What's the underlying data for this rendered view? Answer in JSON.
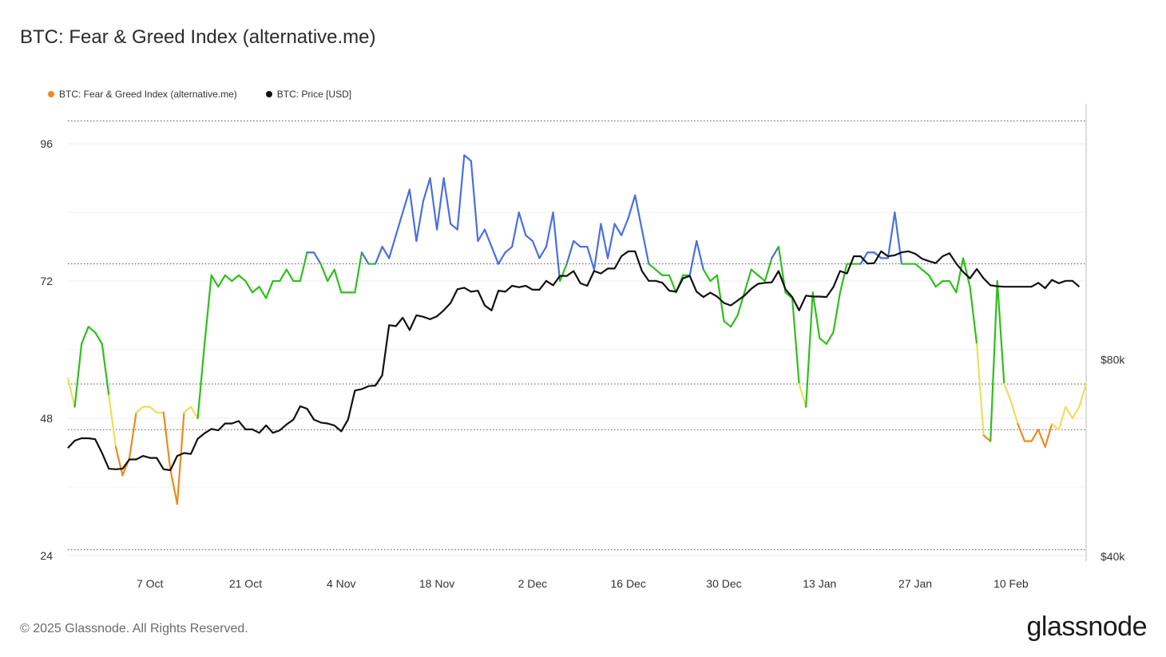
{
  "header": {
    "title": "BTC: Fear & Greed Index (alternative.me)"
  },
  "footer": {
    "copyright": "© 2025 Glassnode. All Rights Reserved.",
    "brand": "glassnode"
  },
  "colors": {
    "extreme_fear": "#f08a1c",
    "fear": "#f2dc5d",
    "greed": "#2ec01a",
    "extreme_greed": "#4a6fe3",
    "price": "#111111"
  },
  "chart_data": {
    "type": "line",
    "title": "BTC: Fear & Greed Index (alternative.me)",
    "legend_position": "top-left",
    "legend": [
      {
        "label": "BTC: Fear & Greed Index (alternative.me)",
        "color": "#f08a1c"
      },
      {
        "label": "BTC: Price [USD]",
        "color": "#111111"
      }
    ],
    "x_labels": [
      "7 Oct",
      "21 Oct",
      "4 Nov",
      "18 Nov",
      "2 Dec",
      "16 Dec",
      "30 Dec",
      "13 Jan",
      "27 Jan",
      "10 Feb"
    ],
    "x_label_day_index": [
      12,
      26,
      40,
      54,
      68,
      82,
      96,
      110,
      124,
      138
    ],
    "y_left": {
      "ticks": [
        24,
        48,
        72,
        96
      ],
      "tick_labels": [
        "24",
        "48",
        "72",
        "96"
      ],
      "range": [
        23,
        103
      ]
    },
    "y_right": {
      "ticks": [
        40000,
        80000
      ],
      "tick_labels": [
        "$40k",
        "$80k"
      ],
      "range": [
        39000,
        132000
      ]
    },
    "thresholds": [
      25,
      46,
      54,
      75,
      100
    ],
    "series": [
      {
        "name": "BTC: Fear & Greed Index (alternative.me)",
        "axis": "left",
        "values": [
          55,
          50,
          61,
          64,
          63,
          61,
          52,
          43,
          38,
          41,
          49,
          50,
          50,
          49,
          49,
          39,
          33,
          49,
          50,
          48,
          61,
          73,
          71,
          73,
          72,
          73,
          72,
          70,
          71,
          69,
          72,
          72,
          74,
          72,
          72,
          77,
          77,
          75,
          72,
          74,
          70,
          70,
          70,
          77,
          75,
          75,
          78,
          76,
          80,
          84,
          88,
          79,
          86,
          90,
          81,
          90,
          82,
          81,
          94,
          93,
          79,
          81,
          78,
          75,
          77,
          78,
          84,
          80,
          79,
          76,
          78,
          84,
          72,
          75,
          79,
          78,
          78,
          74,
          82,
          76,
          82,
          80,
          83,
          87,
          81,
          75,
          74,
          73,
          73,
          70,
          73,
          73,
          79,
          74,
          72,
          73,
          65,
          64,
          66,
          70,
          74,
          73,
          72,
          76,
          78,
          70,
          69,
          54,
          50,
          70,
          62,
          61,
          63,
          70,
          75,
          75,
          75,
          77,
          77,
          76,
          76,
          84,
          75,
          75,
          75,
          74,
          73,
          71,
          72,
          72,
          70,
          76,
          71,
          61,
          45,
          44,
          72,
          54,
          51,
          47,
          44,
          44,
          46,
          43,
          47,
          46,
          50,
          48,
          50,
          54
        ],
        "color_bands": {
          "extreme_fear": "<25",
          "fear": "25-46 orange / 46-54 yellow",
          "greed": "54-75",
          "extreme_greed": ">75"
        }
      },
      {
        "name": "BTC: Price [USD]",
        "axis": "right",
        "values": [
          62000,
          63500,
          64000,
          64000,
          63800,
          61000,
          57800,
          57700,
          57800,
          59700,
          59700,
          60400,
          60000,
          60000,
          57700,
          57500,
          60400,
          61000,
          60800,
          63900,
          65000,
          65900,
          65600,
          67000,
          67000,
          67500,
          65800,
          65800,
          65100,
          66600,
          65100,
          65600,
          66800,
          67800,
          70500,
          70000,
          67800,
          67200,
          67000,
          66600,
          65400,
          67800,
          73700,
          74000,
          74600,
          74700,
          76800,
          87000,
          86800,
          88500,
          86000,
          89000,
          88700,
          88200,
          88800,
          90000,
          91500,
          94300,
          94600,
          93800,
          94000,
          91000,
          90000,
          94000,
          93800,
          95000,
          94700,
          95000,
          94200,
          94200,
          96000,
          95100,
          97000,
          97000,
          98000,
          95500,
          95000,
          98000,
          97500,
          98500,
          98500,
          101000,
          102000,
          102000,
          98000,
          96000,
          96000,
          95600,
          94000,
          93800,
          96500,
          97000,
          93800,
          92700,
          93600,
          92800,
          91500,
          91000,
          92000,
          93000,
          94400,
          95400,
          95600,
          95700,
          98000,
          94300,
          92700,
          90000,
          93000,
          92800,
          92800,
          92700,
          94700,
          98000,
          97500,
          101000,
          101000,
          99500,
          99600,
          102000,
          101000,
          101200,
          101800,
          102000,
          101500,
          100500,
          100000,
          99600,
          101000,
          101600,
          99500,
          97800,
          96500,
          98400,
          96500,
          95100,
          94900,
          94800,
          94800,
          94800,
          94800,
          94800,
          95600,
          94500,
          96200,
          95500,
          96000,
          96000,
          94800
        ],
        "color": "#111111"
      }
    ]
  }
}
